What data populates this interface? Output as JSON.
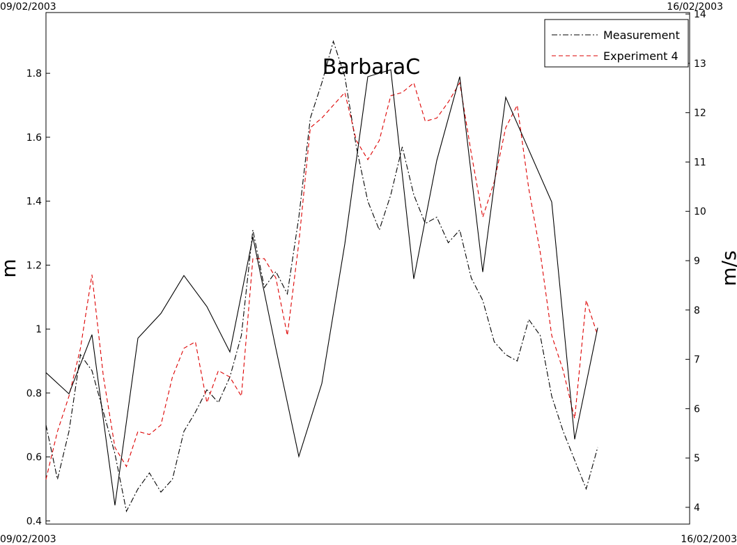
{
  "chart_data": {
    "type": "line",
    "title": "BarbaraC",
    "ylabel": "m",
    "y2label": "m/s",
    "xticks": [
      "09/02/2003",
      "16/02/2003"
    ],
    "ylim": [
      0.39,
      1.99
    ],
    "yticks": [
      0.4,
      0.6,
      0.8,
      1,
      1.2,
      1.4,
      1.6,
      1.8
    ],
    "y2lim": [
      3.66,
      14.03
    ],
    "y2ticks": [
      4,
      5,
      6,
      7,
      8,
      9,
      10,
      11,
      12,
      13,
      14
    ],
    "legend": "upper right",
    "series": [
      {
        "name": "Measurement",
        "color": "#000000",
        "style": "dashdot",
        "values": [
          0.7,
          0.53,
          0.68,
          0.92,
          0.87,
          0.74,
          0.61,
          0.43,
          0.5,
          0.55,
          0.49,
          0.53,
          0.68,
          0.74,
          0.81,
          0.77,
          0.85,
          0.98,
          1.31,
          1.13,
          1.18,
          1.11,
          1.35,
          1.66,
          1.77,
          1.9,
          1.79,
          1.57,
          1.4,
          1.31,
          1.42,
          1.57,
          1.42,
          1.33,
          1.35,
          1.27,
          1.31,
          1.16,
          1.09,
          0.96,
          0.92,
          0.9,
          1.03,
          0.98,
          0.79,
          0.68,
          0.59,
          0.5,
          0.63
        ]
      },
      {
        "name": "Experiment 4",
        "color": "#dd0000",
        "style": "dashed",
        "values": [
          0.53,
          0.68,
          0.79,
          0.94,
          1.17,
          0.85,
          0.63,
          0.57,
          0.68,
          0.67,
          0.7,
          0.85,
          0.94,
          0.96,
          0.77,
          0.87,
          0.85,
          0.79,
          1.22,
          1.22,
          1.16,
          0.98,
          1.27,
          1.63,
          1.66,
          1.7,
          1.74,
          1.59,
          1.53,
          1.59,
          1.73,
          1.74,
          1.77,
          1.65,
          1.66,
          1.71,
          1.77,
          1.55,
          1.35,
          1.46,
          1.63,
          1.7,
          1.44,
          1.24,
          0.98,
          0.87,
          0.72,
          1.09,
          0.98
        ]
      },
      {
        "color": "#000000",
        "style": "solid",
        "axis": "y2",
        "values": [
          6.73,
          6.3,
          7.5,
          4.04,
          7.43,
          7.93,
          8.7,
          8.07,
          7.15,
          9.48,
          7.22,
          5.03,
          6.51,
          9.34,
          12.73,
          12.87,
          8.63,
          11.03,
          12.73,
          8.77,
          12.31,
          11.25,
          10.19,
          5.38,
          7.64
        ]
      }
    ]
  }
}
